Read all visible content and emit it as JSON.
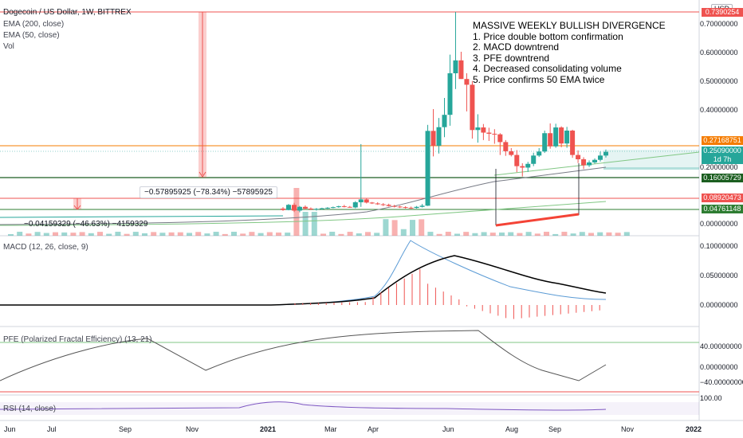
{
  "header": {
    "title": "Dogecoin / US Dollar, 1W, BITTREX",
    "studies": [
      "EMA (200, close)",
      "EMA (50, close)",
      "Vol"
    ]
  },
  "annotation": {
    "lines": [
      "MASSIVE WEEKLY BULLISH DIVERGENCE",
      "1. Price double bottom confirmation",
      "2. MACD downtrend",
      "3. PFE downtrend",
      "4. Decreased consolidating volume",
      "5. Price confirms 50 EMA twice"
    ]
  },
  "measures": {
    "big": "−0.57895925 (−78.34%) −57895925",
    "small": "−0.04159329 (−46.63%) −4159329"
  },
  "price_axis": {
    "currency": "USD",
    "ticks": [
      "0.70000000",
      "0.60000000",
      "0.50000000",
      "0.40000000",
      "0.20000000",
      "0.00000000"
    ],
    "badges": [
      {
        "text": "0.7390254",
        "color": "#ef5350"
      },
      {
        "text": "0.27168751",
        "color": "#f57c00"
      },
      {
        "text": "0.25090000",
        "color": "#26a69a"
      },
      {
        "text": "1d 7h",
        "color": "#26a69a"
      },
      {
        "text": "0.16005729",
        "color": "#1b5e20"
      },
      {
        "text": "0.08920473",
        "color": "#ef5350"
      },
      {
        "text": "0.04761148",
        "color": "#2e7d32"
      }
    ]
  },
  "macd": {
    "title": "MACD (12, 26, close, 9)",
    "ticks": [
      "0.10000000",
      "0.05000000",
      "0.00000000"
    ]
  },
  "pfe": {
    "title": "PFE (Polarized Fractal Efficiency) (13, 21)",
    "ticks": [
      "40.00000000",
      "0.00000000",
      "−40.00000000"
    ]
  },
  "rsi": {
    "title": "RSI (14, close)",
    "ticks": [
      "100.00"
    ]
  },
  "time_axis": [
    "Jun",
    "Jul",
    "Sep",
    "Nov",
    "2021",
    "Mar",
    "Apr",
    "Jun",
    "Aug",
    "Sep",
    "Nov",
    "2022"
  ],
  "colors": {
    "up": "#26a69a",
    "down": "#ef5350",
    "ema200": "#787b86",
    "ema50": "#81c784",
    "macd": "#000000",
    "signal": "#5b9bd5",
    "pfe": "#555555",
    "rsi": "#7e57c2"
  },
  "chart_data": {
    "type": "candlestick",
    "title": "Dogecoin / US Dollar, 1W, BITTREX",
    "ylim": [
      0,
      0.75
    ],
    "candles": [
      {
        "o": 0.053,
        "h": 0.058,
        "l": 0.045,
        "c": 0.048
      },
      {
        "o": 0.048,
        "h": 0.069,
        "l": 0.047,
        "c": 0.066
      },
      {
        "o": 0.066,
        "h": 0.073,
        "l": 0.041,
        "c": 0.046
      },
      {
        "o": 0.046,
        "h": 0.062,
        "l": 0.04,
        "c": 0.059
      },
      {
        "o": 0.059,
        "h": 0.064,
        "l": 0.049,
        "c": 0.053
      },
      {
        "o": 0.053,
        "h": 0.057,
        "l": 0.048,
        "c": 0.05
      },
      {
        "o": 0.05,
        "h": 0.055,
        "l": 0.046,
        "c": 0.052
      },
      {
        "o": 0.052,
        "h": 0.056,
        "l": 0.049,
        "c": 0.054
      },
      {
        "o": 0.054,
        "h": 0.058,
        "l": 0.052,
        "c": 0.056
      },
      {
        "o": 0.056,
        "h": 0.06,
        "l": 0.054,
        "c": 0.058
      },
      {
        "o": 0.058,
        "h": 0.063,
        "l": 0.056,
        "c": 0.061
      },
      {
        "o": 0.061,
        "h": 0.066,
        "l": 0.057,
        "c": 0.059
      },
      {
        "o": 0.059,
        "h": 0.062,
        "l": 0.056,
        "c": 0.057
      },
      {
        "o": 0.057,
        "h": 0.079,
        "l": 0.054,
        "c": 0.075
      },
      {
        "o": 0.075,
        "h": 0.278,
        "l": 0.059,
        "c": 0.085
      },
      {
        "o": 0.085,
        "h": 0.088,
        "l": 0.071,
        "c": 0.074
      },
      {
        "o": 0.074,
        "h": 0.076,
        "l": 0.069,
        "c": 0.071
      },
      {
        "o": 0.071,
        "h": 0.075,
        "l": 0.066,
        "c": 0.068
      },
      {
        "o": 0.068,
        "h": 0.072,
        "l": 0.062,
        "c": 0.066
      },
      {
        "o": 0.066,
        "h": 0.07,
        "l": 0.06,
        "c": 0.062
      },
      {
        "o": 0.062,
        "h": 0.066,
        "l": 0.057,
        "c": 0.06
      },
      {
        "o": 0.06,
        "h": 0.063,
        "l": 0.055,
        "c": 0.058
      },
      {
        "o": 0.058,
        "h": 0.061,
        "l": 0.053,
        "c": 0.056
      },
      {
        "o": 0.056,
        "h": 0.06,
        "l": 0.052,
        "c": 0.055
      },
      {
        "o": 0.055,
        "h": 0.062,
        "l": 0.053,
        "c": 0.059
      },
      {
        "o": 0.059,
        "h": 0.069,
        "l": 0.057,
        "c": 0.063
      },
      {
        "o": 0.063,
        "h": 0.345,
        "l": 0.062,
        "c": 0.324
      },
      {
        "o": 0.324,
        "h": 0.4,
        "l": 0.235,
        "c": 0.272
      },
      {
        "o": 0.272,
        "h": 0.369,
        "l": 0.245,
        "c": 0.337
      },
      {
        "o": 0.337,
        "h": 0.439,
        "l": 0.302,
        "c": 0.38
      },
      {
        "o": 0.38,
        "h": 0.59,
        "l": 0.342,
        "c": 0.525
      },
      {
        "o": 0.525,
        "h": 0.739,
        "l": 0.47,
        "c": 0.57
      },
      {
        "o": 0.57,
        "h": 0.6,
        "l": 0.505,
        "c": 0.505
      },
      {
        "o": 0.505,
        "h": 0.525,
        "l": 0.392,
        "c": 0.485
      },
      {
        "o": 0.485,
        "h": 0.498,
        "l": 0.297,
        "c": 0.327
      },
      {
        "o": 0.327,
        "h": 0.382,
        "l": 0.283,
        "c": 0.336
      },
      {
        "o": 0.336,
        "h": 0.348,
        "l": 0.292,
        "c": 0.318
      },
      {
        "o": 0.318,
        "h": 0.335,
        "l": 0.289,
        "c": 0.314
      },
      {
        "o": 0.314,
        "h": 0.33,
        "l": 0.279,
        "c": 0.312
      },
      {
        "o": 0.312,
        "h": 0.316,
        "l": 0.24,
        "c": 0.285
      },
      {
        "o": 0.285,
        "h": 0.292,
        "l": 0.237,
        "c": 0.253
      },
      {
        "o": 0.253,
        "h": 0.264,
        "l": 0.235,
        "c": 0.24
      },
      {
        "o": 0.24,
        "h": 0.257,
        "l": 0.18,
        "c": 0.201
      },
      {
        "o": 0.201,
        "h": 0.211,
        "l": 0.165,
        "c": 0.196
      },
      {
        "o": 0.196,
        "h": 0.216,
        "l": 0.181,
        "c": 0.209
      },
      {
        "o": 0.209,
        "h": 0.248,
        "l": 0.201,
        "c": 0.238
      },
      {
        "o": 0.238,
        "h": 0.264,
        "l": 0.233,
        "c": 0.252
      },
      {
        "o": 0.252,
        "h": 0.325,
        "l": 0.247,
        "c": 0.316
      },
      {
        "o": 0.316,
        "h": 0.35,
        "l": 0.262,
        "c": 0.27
      },
      {
        "o": 0.27,
        "h": 0.349,
        "l": 0.265,
        "c": 0.336
      },
      {
        "o": 0.336,
        "h": 0.34,
        "l": 0.267,
        "c": 0.28
      },
      {
        "o": 0.28,
        "h": 0.338,
        "l": 0.265,
        "c": 0.325
      },
      {
        "o": 0.325,
        "h": 0.328,
        "l": 0.23,
        "c": 0.24
      },
      {
        "o": 0.24,
        "h": 0.256,
        "l": 0.212,
        "c": 0.225
      },
      {
        "o": 0.225,
        "h": 0.232,
        "l": 0.191,
        "c": 0.204
      },
      {
        "o": 0.204,
        "h": 0.221,
        "l": 0.198,
        "c": 0.214
      },
      {
        "o": 0.214,
        "h": 0.228,
        "l": 0.21,
        "c": 0.223
      },
      {
        "o": 0.223,
        "h": 0.252,
        "l": 0.217,
        "c": 0.238
      },
      {
        "o": 0.238,
        "h": 0.259,
        "l": 0.231,
        "c": 0.251
      }
    ]
  }
}
